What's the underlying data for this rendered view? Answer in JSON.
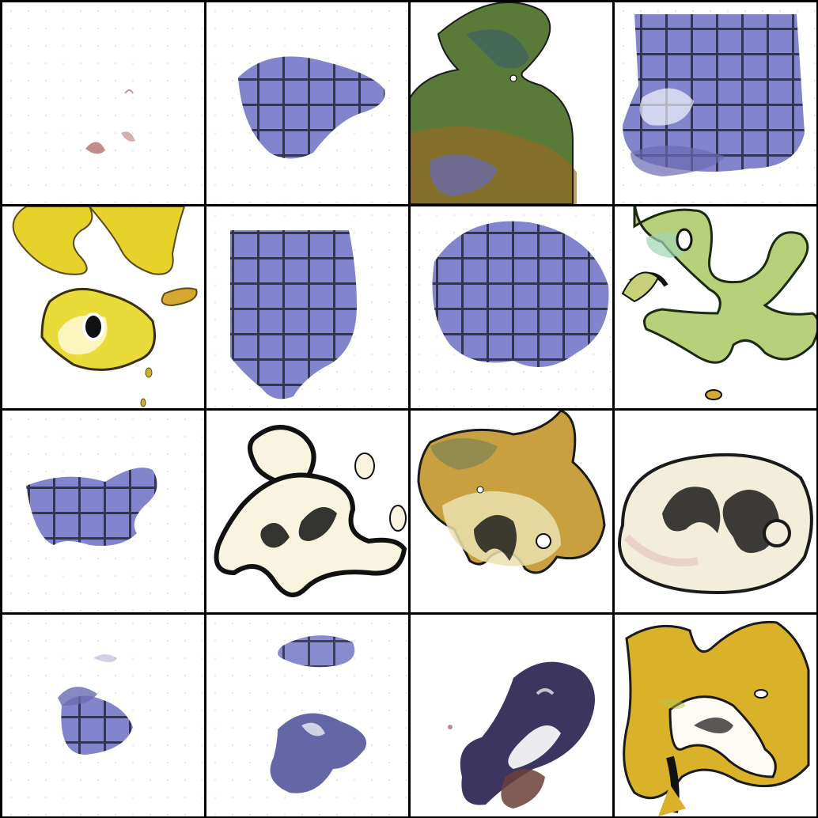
{
  "grid": {
    "rows": 4,
    "cols": 4,
    "tiles": [
      {
        "style": "sparse",
        "colors": [
          "#8a3030",
          "#a35050"
        ]
      },
      {
        "style": "pattern",
        "colors": [
          "#7b7fc8",
          "#2b2b3a"
        ]
      },
      {
        "style": "blob",
        "colors": [
          "#5a7a3a",
          "#9a6a20",
          "#3a5a6a"
        ]
      },
      {
        "style": "pattern",
        "colors": [
          "#7b7fc8",
          "#2b2b3a"
        ]
      },
      {
        "style": "blob",
        "colors": [
          "#e6d22a",
          "#c9b020"
        ]
      },
      {
        "style": "pattern",
        "colors": [
          "#7b7fc8",
          "#2b2b3a"
        ]
      },
      {
        "style": "pattern",
        "colors": [
          "#7b7fc8",
          "#2b2b3a"
        ]
      },
      {
        "style": "blob",
        "colors": [
          "#b8d07a",
          "#9fd6b3"
        ]
      },
      {
        "style": "pattern",
        "colors": [
          "#7b7fc8",
          "#2b2b3a"
        ]
      },
      {
        "style": "outline",
        "colors": [
          "#f8f4df",
          "#111111"
        ]
      },
      {
        "style": "blob",
        "colors": [
          "#c8a040",
          "#6a7a5a",
          "#eae2b0"
        ]
      },
      {
        "style": "outline",
        "colors": [
          "#f3eddc",
          "#1a1a1a"
        ]
      },
      {
        "style": "pattern",
        "colors": [
          "#7b7fc8",
          "#2b2b3a"
        ]
      },
      {
        "style": "pattern",
        "colors": [
          "#5c5ea0",
          "#2b2b3a"
        ]
      },
      {
        "style": "dark",
        "colors": [
          "#3c3560",
          "#6b3f3a"
        ]
      },
      {
        "style": "blob",
        "colors": [
          "#d9b22a",
          "#b7c24a"
        ]
      }
    ]
  }
}
